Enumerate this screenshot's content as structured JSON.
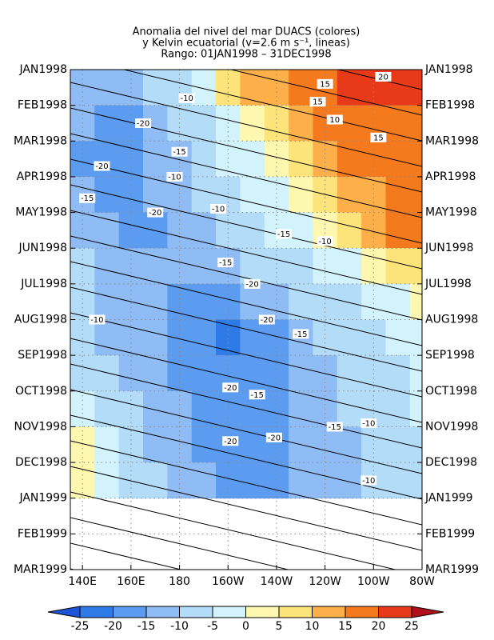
{
  "chart_data": {
    "type": "heatmap",
    "title": [
      "Anomalia del nivel del mar DUACS (colores)",
      "y Kelvin ecuatorial (v=2.6 m s⁻¹, lineas)",
      "Rango: 01JAN1998 – 31DEC1998"
    ],
    "x": [
      140,
      150,
      160,
      170,
      180,
      190,
      200,
      210,
      220,
      230,
      240,
      250,
      260,
      270,
      280
    ],
    "y": [
      0,
      1,
      2,
      3,
      4,
      5,
      6,
      7,
      8,
      9,
      10,
      11
    ],
    "values": [
      [
        -12,
        -15,
        -12,
        -10,
        -8,
        -3,
        5,
        10,
        12,
        15,
        18,
        20,
        22,
        23,
        24
      ],
      [
        -15,
        -17,
        -18,
        -15,
        -10,
        -6,
        -2,
        3,
        8,
        12,
        15,
        17,
        18,
        18,
        18
      ],
      [
        -17,
        -20,
        -18,
        -15,
        -12,
        -8,
        -5,
        -2,
        2,
        6,
        10,
        15,
        16,
        16,
        15
      ],
      [
        -15,
        -18,
        -20,
        -15,
        -12,
        -10,
        -8,
        -5,
        -2,
        2,
        5,
        10,
        13,
        15,
        15
      ],
      [
        -12,
        -15,
        -18,
        -17,
        -14,
        -12,
        -10,
        -8,
        -5,
        -2,
        2,
        5,
        10,
        15,
        15
      ],
      [
        -10,
        -12,
        -14,
        -15,
        -15,
        -14,
        -13,
        -10,
        -8,
        -6,
        -4,
        -2,
        2,
        5,
        5
      ],
      [
        -10,
        -12,
        -13,
        -15,
        -17,
        -18,
        -18,
        -15,
        -12,
        -10,
        -8,
        -6,
        -4,
        -2,
        0
      ],
      [
        -10,
        -12,
        -13,
        -15,
        -17,
        -20,
        -22,
        -20,
        -16,
        -13,
        -10,
        -8,
        -6,
        -5,
        -3
      ],
      [
        -8,
        -10,
        -12,
        -14,
        -16,
        -18,
        -20,
        -20,
        -17,
        -14,
        -12,
        -10,
        -8,
        -6,
        -5
      ],
      [
        -3,
        -8,
        -10,
        -13,
        -15,
        -18,
        -20,
        -18,
        -16,
        -14,
        -12,
        -10,
        -8,
        -6,
        -5
      ],
      [
        0,
        -5,
        -8,
        -12,
        -14,
        -17,
        -20,
        -20,
        -17,
        -15,
        -13,
        -11,
        -9,
        -8,
        -7
      ],
      [
        3,
        -2,
        -6,
        -10,
        -13,
        -15,
        -17,
        -18,
        -16,
        -14,
        -12,
        -11,
        -10,
        -9,
        -8
      ]
    ],
    "xlim": [
      135,
      280
    ],
    "ylim": [
      0,
      14
    ],
    "xticks": [
      {
        "value": 140,
        "label": "140E"
      },
      {
        "value": 160,
        "label": "160E"
      },
      {
        "value": 180,
        "label": "180"
      },
      {
        "value": 200,
        "label": "160W"
      },
      {
        "value": 220,
        "label": "140W"
      },
      {
        "value": 240,
        "label": "120W"
      },
      {
        "value": 260,
        "label": "100W"
      },
      {
        "value": 280,
        "label": "80W"
      }
    ],
    "yticks": [
      {
        "value": 0,
        "label": "JAN1998"
      },
      {
        "value": 1,
        "label": "FEB1998"
      },
      {
        "value": 2,
        "label": "MAR1998"
      },
      {
        "value": 3,
        "label": "APR1998"
      },
      {
        "value": 4,
        "label": "MAY1998"
      },
      {
        "value": 5,
        "label": "JUN1998"
      },
      {
        "value": 6,
        "label": "JUL1998"
      },
      {
        "value": 7,
        "label": "AUG1998"
      },
      {
        "value": 8,
        "label": "SEP1998"
      },
      {
        "value": 9,
        "label": "OCT1998"
      },
      {
        "value": 10,
        "label": "NOV1998"
      },
      {
        "value": 11,
        "label": "DEC1998"
      },
      {
        "value": 12,
        "label": "JAN1999"
      },
      {
        "value": 13,
        "label": "FEB1999"
      },
      {
        "value": 14,
        "label": "MAR1999"
      }
    ],
    "grid": true,
    "colorbar": {
      "levels": [
        -25,
        -20,
        -15,
        -10,
        -5,
        0,
        5,
        10,
        15,
        20,
        25
      ],
      "colors": [
        "#1c54d6",
        "#2e7ae6",
        "#5b9cf0",
        "#8fbcf5",
        "#b3dcf8",
        "#d2f3fb",
        "#fdf7b0",
        "#fde47a",
        "#fdb04a",
        "#f57a1e",
        "#e83a18",
        "#b0101a"
      ]
    },
    "contour_labels": {
      "values": [
        20,
        15,
        -10,
        15,
        -20,
        10,
        -15,
        15,
        -20,
        -10,
        -15,
        -20,
        -10,
        -15,
        -10,
        -20,
        -15,
        -20,
        -15,
        -10,
        -20,
        -15,
        -20,
        -15,
        -10,
        -20,
        -10
      ],
      "lon": [
        264,
        240,
        183,
        237,
        165,
        244,
        180,
        262,
        148,
        178,
        142,
        170,
        196,
        223,
        240,
        210,
        199,
        216,
        230,
        146,
        201,
        212,
        201,
        244,
        258,
        219,
        258
      ],
      "time": [
        0.2,
        0.4,
        0.8,
        0.9,
        1.5,
        1.4,
        2.3,
        1.9,
        2.7,
        3.0,
        3.6,
        4.0,
        3.9,
        4.6,
        4.8,
        6.0,
        5.4,
        7.0,
        7.4,
        7.0,
        8.9,
        9.1,
        10.4,
        10.0,
        9.9,
        10.3,
        11.5
      ]
    }
  }
}
